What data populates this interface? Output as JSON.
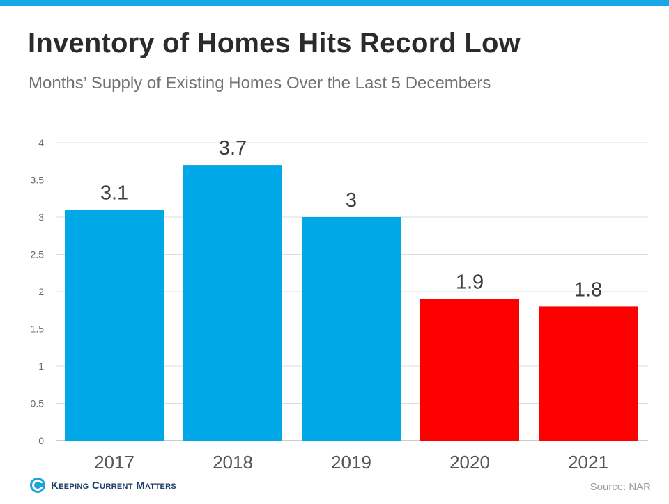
{
  "header": {
    "title": "Inventory of Homes Hits Record Low",
    "subtitle": "Months’ Supply of Existing Homes Over the Last 5 Decembers"
  },
  "footer": {
    "brand": "Keeping Current Matters",
    "source_label": "Source:",
    "source_value": "NAR"
  },
  "colors": {
    "accent": "#19a6e4",
    "bar_blue": "#00a8e8",
    "bar_red": "#ff0000",
    "grid": "#dcdcdc"
  },
  "chart_data": {
    "type": "bar",
    "title": "Inventory of Homes Hits Record Low",
    "xlabel": "",
    "ylabel": "",
    "categories": [
      "2017",
      "2018",
      "2019",
      "2020",
      "2021"
    ],
    "values": [
      3.1,
      3.7,
      3,
      1.9,
      1.8
    ],
    "value_labels": [
      "3.1",
      "3.7",
      "3",
      "1.9",
      "1.8"
    ],
    "bar_colors": [
      "#00a8e8",
      "#00a8e8",
      "#00a8e8",
      "#ff0000",
      "#ff0000"
    ],
    "ylim": [
      0,
      4
    ],
    "yticks": [
      0,
      0.5,
      1,
      1.5,
      2,
      2.5,
      3,
      3.5,
      4
    ],
    "ytick_labels": [
      "0",
      "0.5",
      "1",
      "1.5",
      "2",
      "2.5",
      "3",
      "3.5",
      "4"
    ],
    "grid": true,
    "legend": "none"
  }
}
